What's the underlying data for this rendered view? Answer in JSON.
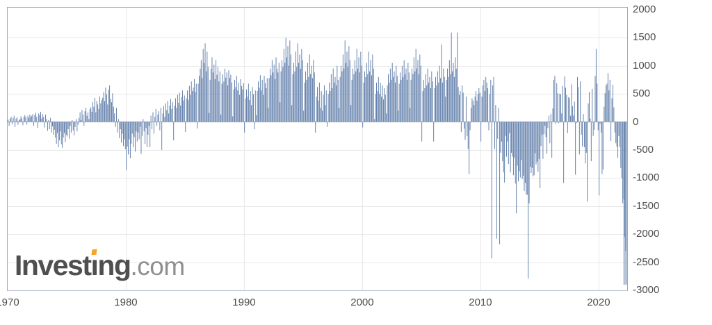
{
  "logo": {
    "part1": "Invest",
    "dotless_i": "ı",
    "part2": "ng",
    "suffix": ".com",
    "text_color": "#4f4f4f",
    "suffix_color": "#8f8f8f",
    "accent_color": "#F5A623"
  },
  "chart_data": {
    "type": "bar",
    "title": "",
    "xlabel": "",
    "ylabel": "",
    "frequency": "monthly",
    "start": "1970-01",
    "months": 629,
    "ylim": [
      -3000,
      2000
    ],
    "grid": true,
    "legend": "none",
    "bar_color": "#5E7CA9",
    "last_bar_color": "rgba(94,124,169,0.45)",
    "gridline_color": "#E8E8E8",
    "zero_line_color": "#C9C9C9",
    "axis_text_color": "#4d4d4d",
    "y_ticks": [
      {
        "label": "2000",
        "value": 2000
      },
      {
        "label": "1500",
        "value": 1500
      },
      {
        "label": "1000",
        "value": 1000
      },
      {
        "label": "500",
        "value": 500
      },
      {
        "label": "0",
        "value": 0
      },
      {
        "label": "-500",
        "value": -500
      },
      {
        "label": "-1000",
        "value": -1000
      },
      {
        "label": "-1500",
        "value": -1500
      },
      {
        "label": "-2000",
        "value": -2000
      },
      {
        "label": "-2500",
        "value": -2500
      },
      {
        "label": "-3000",
        "value": -3000
      }
    ],
    "x_ticks": [
      {
        "label": "1970",
        "year": 1970
      },
      {
        "label": "1980",
        "year": 1980
      },
      {
        "label": "1990",
        "year": 1990
      },
      {
        "label": "2000",
        "year": 2000
      },
      {
        "label": "2010",
        "year": 2010
      },
      {
        "label": "2020",
        "year": 2020
      }
    ],
    "x_gridline_years": [
      1980,
      1990,
      2000,
      2010,
      2020
    ],
    "values": [
      40,
      -70,
      60,
      90,
      -40,
      70,
      110,
      -90,
      60,
      80,
      -50,
      30,
      50,
      100,
      60,
      -60,
      90,
      120,
      80,
      -50,
      110,
      70,
      130,
      90,
      110,
      140,
      -70,
      120,
      160,
      90,
      -110,
      150,
      120,
      180,
      60,
      140,
      90,
      -100,
      130,
      50,
      -160,
      30,
      -130,
      70,
      -190,
      -80,
      -230,
      -140,
      -280,
      -390,
      -200,
      -450,
      -330,
      -170,
      -400,
      -460,
      -280,
      -200,
      -360,
      -230,
      -260,
      -130,
      -300,
      -70,
      -190,
      30,
      -150,
      -240,
      -90,
      50,
      -170,
      -50,
      70,
      170,
      30,
      210,
      130,
      -70,
      190,
      250,
      110,
      170,
      50,
      230,
      260,
      180,
      350,
      270,
      430,
      170,
      370,
      310,
      230,
      450,
      330,
      390,
      430,
      530,
      370,
      610,
      490,
      310,
      570,
      650,
      410,
      350,
      510,
      270,
      150,
      -90,
      250,
      -190,
      50,
      -290,
      -130,
      -370,
      -210,
      -430,
      -310,
      -490,
      -860,
      -440,
      -580,
      -310,
      -650,
      -390,
      -210,
      -450,
      -270,
      -530,
      -170,
      -350,
      -190,
      -310,
      -90,
      -570,
      -250,
      50,
      -170,
      -390,
      -110,
      -450,
      -230,
      -70,
      -450,
      110,
      -130,
      170,
      -210,
      90,
      230,
      -70,
      130,
      190,
      -150,
      250,
      -500,
      150,
      280,
      90,
      330,
      210,
      370,
      150,
      290,
      410,
      230,
      350,
      -330,
      290,
      420,
      250,
      480,
      340,
      520,
      290,
      440,
      560,
      380,
      470,
      -180,
      420,
      560,
      390,
      640,
      480,
      720,
      550,
      610,
      760,
      530,
      680,
      -120,
      680,
      820,
      950,
      1100,
      780,
      1300,
      1050,
      1400,
      900,
      1250,
      980,
      160,
      750,
      950,
      1150,
      880,
      1020,
      760,
      1100,
      840,
      980,
      720,
      900,
      130,
      680,
      850,
      720,
      950,
      790,
      880,
      650,
      920,
      780,
      840,
      700,
      100,
      580,
      750,
      620,
      820,
      560,
      700,
      480,
      760,
      640,
      580,
      690,
      -190,
      420,
      580,
      450,
      680,
      390,
      550,
      300,
      620,
      490,
      -130,
      560,
      120,
      550,
      720,
      610,
      830,
      560,
      750,
      480,
      820,
      690,
      600,
      780,
      250,
      780,
      950,
      830,
      1100,
      880,
      1020,
      760,
      1150,
      950,
      880,
      1050,
      350,
      900,
      1100,
      980,
      1300,
      1050,
      1500,
      1150,
      1350,
      1000,
      1450,
      1200,
      300,
      850,
      1050,
      900,
      1250,
      980,
      1400,
      1050,
      1200,
      950,
      1300,
      1100,
      200,
      700,
      900,
      750,
      1050,
      800,
      1200,
      850,
      1000,
      780,
      1100,
      880,
      -190,
      450,
      620,
      380,
      700,
      250,
      550,
      200,
      480,
      650,
      300,
      560,
      -90,
      500,
      700,
      550,
      850,
      600,
      950,
      700,
      800,
      650,
      1000,
      750,
      250,
      800,
      1000,
      900,
      1200,
      950,
      1450,
      1050,
      1250,
      980,
      1350,
      1100,
      300,
      750,
      950,
      850,
      1100,
      900,
      1300,
      950,
      1150,
      880,
      1250,
      1000,
      -100,
      700,
      900,
      800,
      1050,
      850,
      1250,
      900,
      1100,
      830,
      1200,
      950,
      50,
      500,
      700,
      550,
      800,
      500,
      700,
      450,
      650,
      400,
      600,
      480,
      150,
      650,
      850,
      700,
      950,
      750,
      1050,
      800,
      900,
      700,
      1000,
      820,
      200,
      680,
      880,
      750,
      1000,
      800,
      1100,
      850,
      950,
      750,
      1050,
      880,
      250,
      750,
      950,
      850,
      1150,
      900,
      1300,
      950,
      1100,
      850,
      1200,
      1000,
      -350,
      550,
      750,
      600,
      850,
      650,
      950,
      700,
      800,
      600,
      900,
      720,
      -350,
      600,
      800,
      650,
      900,
      700,
      1000,
      780,
      1380,
      700,
      950,
      800,
      450,
      750,
      950,
      800,
      1100,
      850,
      1590,
      900,
      1050,
      800,
      1150,
      950,
      1590,
      620,
      480,
      550,
      -180,
      650,
      520,
      -120,
      -320,
      450,
      -250,
      -480,
      -930,
      -150,
      250,
      420,
      380,
      300,
      450,
      550,
      380,
      500,
      600,
      520,
      -350,
      450,
      650,
      750,
      550,
      800,
      700,
      600,
      -150,
      500,
      750,
      -2430,
      650,
      800,
      -480,
      300,
      -2080,
      -300,
      250,
      -2180,
      -550,
      -350,
      -700,
      -900,
      -1080,
      -250,
      -620,
      -350,
      -750,
      -200,
      -900,
      -550,
      -620,
      -950,
      -640,
      -1100,
      -1630,
      -780,
      -1060,
      -880,
      -990,
      -680,
      -1020,
      -960,
      -1230,
      -1090,
      -1290,
      -1300,
      -2790,
      -1450,
      -800,
      -910,
      -820,
      -970,
      -950,
      -560,
      -760,
      -710,
      -890,
      -660,
      -1180,
      -430,
      -230,
      -660,
      -220,
      -70,
      -270,
      -570,
      -110,
      110,
      -380,
      140,
      -640,
      240,
      750,
      820,
      -40,
      690,
      510,
      -20,
      500,
      490,
      150,
      640,
      -1090,
      810,
      610,
      480,
      -200,
      440,
      420,
      110,
      670,
      280,
      110,
      360,
      -940,
      -20,
      800,
      620,
      -580,
      720,
      -230,
      -440,
      140,
      -450,
      -740,
      -550,
      -1420,
      330,
      530,
      60,
      -700,
      590,
      -250,
      -140,
      820,
      1300,
      680,
      -150,
      -1310,
      -30,
      -190,
      -930,
      -850,
      270,
      510,
      650,
      680,
      870,
      560,
      750,
      -340,
      420,
      660,
      260,
      -190,
      -380,
      -440,
      -640,
      -250,
      -450,
      -820,
      -1000,
      -1450,
      -1380,
      -2050,
      -2300,
      -2900
    ]
  }
}
